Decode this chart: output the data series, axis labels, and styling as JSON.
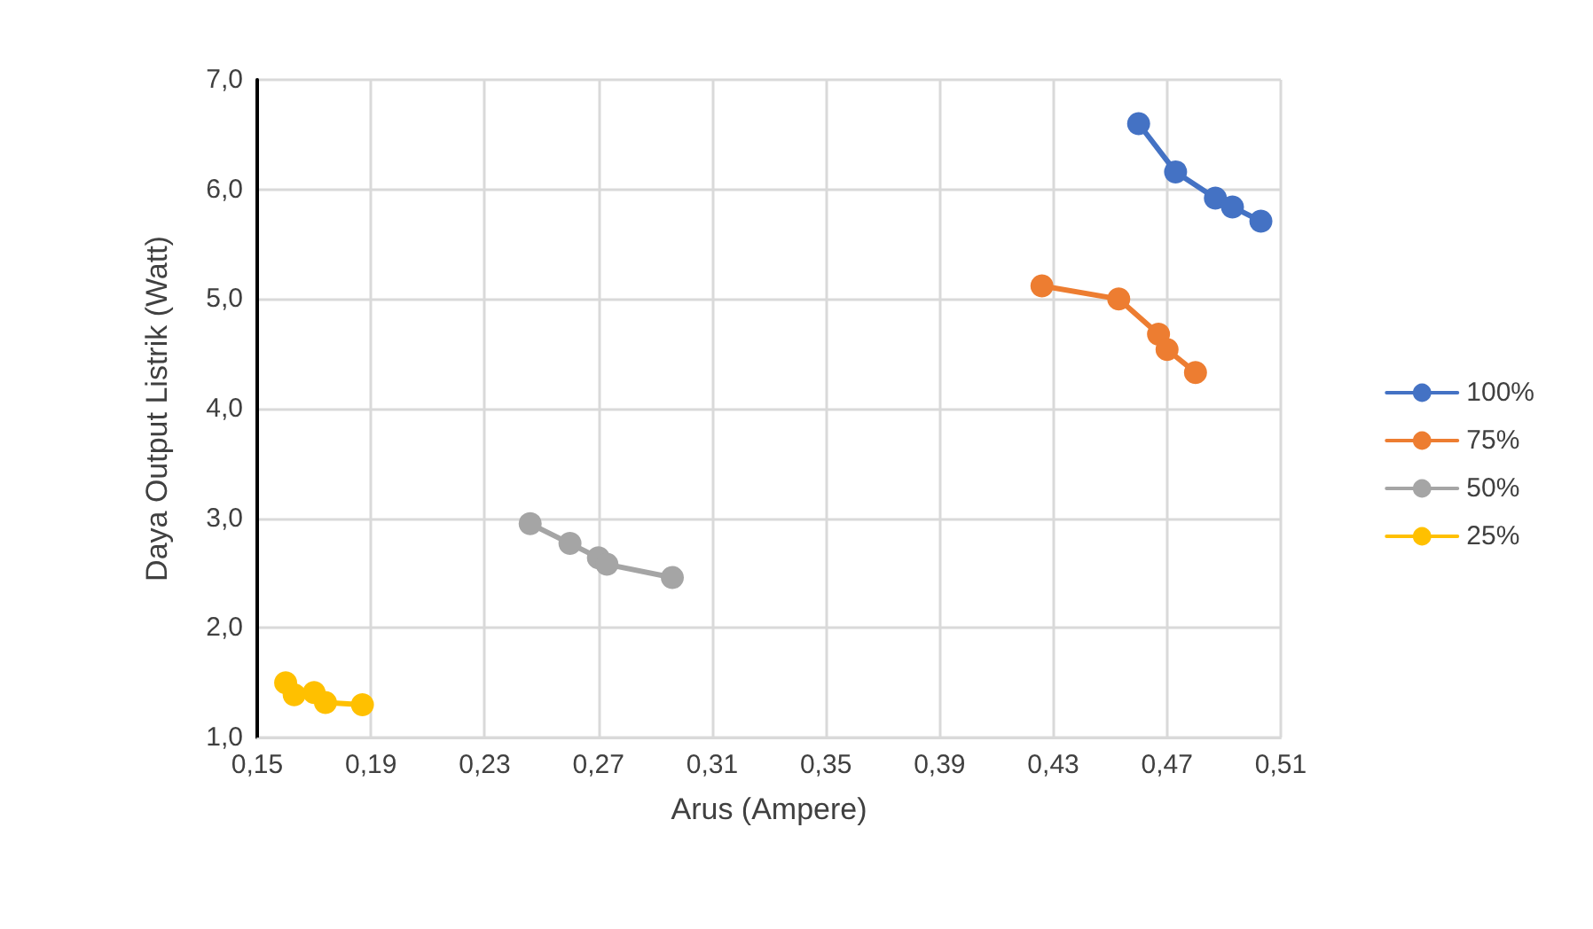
{
  "chart_data": {
    "type": "line",
    "xlabel": "Arus (Ampere)",
    "ylabel": "Daya Output Listrik (Watt)",
    "xlim": [
      0.15,
      0.51
    ],
    "ylim": [
      1,
      7
    ],
    "xticks": [
      {
        "value": 0.15,
        "label": "0,15"
      },
      {
        "value": 0.19,
        "label": "0,19"
      },
      {
        "value": 0.23,
        "label": "0,23"
      },
      {
        "value": 0.27,
        "label": "0,27"
      },
      {
        "value": 0.31,
        "label": "0,31"
      },
      {
        "value": 0.35,
        "label": "0,35"
      },
      {
        "value": 0.39,
        "label": "0,39"
      },
      {
        "value": 0.43,
        "label": "0,43"
      },
      {
        "value": 0.47,
        "label": "0,47"
      },
      {
        "value": 0.51,
        "label": "0,51"
      }
    ],
    "yticks": [
      {
        "value": 1,
        "label": "1,0"
      },
      {
        "value": 2,
        "label": "2,0"
      },
      {
        "value": 3,
        "label": "3,0"
      },
      {
        "value": 4,
        "label": "4,0"
      },
      {
        "value": 5,
        "label": "5,0"
      },
      {
        "value": 6,
        "label": "6,0"
      },
      {
        "value": 7,
        "label": "7,0"
      }
    ],
    "grid": true,
    "legend": "right",
    "marker": "circle",
    "line_style": "solid",
    "series": [
      {
        "name": "100%",
        "color": "#4472c4",
        "x": [
          0.46,
          0.473,
          0.487,
          0.493,
          0.503
        ],
        "values": [
          6.6,
          6.16,
          5.92,
          5.84,
          5.71
        ]
      },
      {
        "name": "75%",
        "color": "#ed7d31",
        "x": [
          0.426,
          0.453,
          0.467,
          0.47,
          0.48
        ],
        "values": [
          5.12,
          5.0,
          4.68,
          4.54,
          4.33
        ]
      },
      {
        "name": "50%",
        "color": "#a5a5a5",
        "x": [
          0.246,
          0.26,
          0.27,
          0.273,
          0.296
        ],
        "values": [
          2.95,
          2.77,
          2.64,
          2.58,
          2.46
        ]
      },
      {
        "name": "25%",
        "color": "#ffc000",
        "x": [
          0.16,
          0.163,
          0.17,
          0.174,
          0.187
        ],
        "values": [
          1.5,
          1.39,
          1.41,
          1.32,
          1.3
        ]
      }
    ]
  }
}
